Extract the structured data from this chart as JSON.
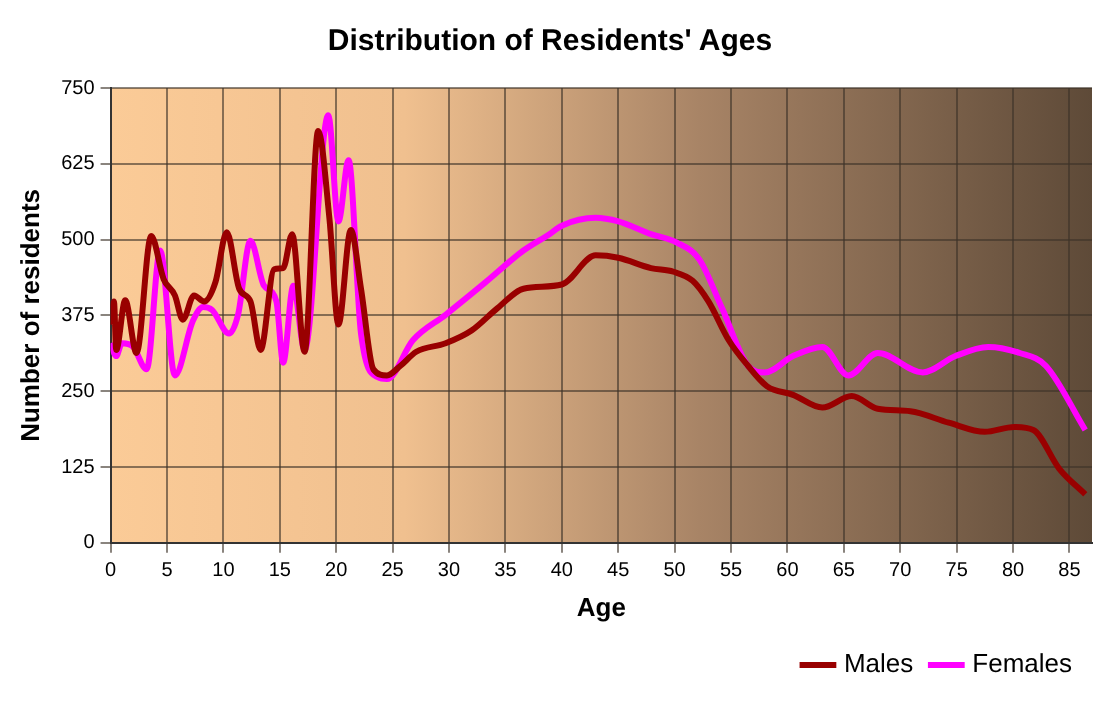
{
  "chart_data": {
    "type": "line",
    "title": "Distribution of Residents' Ages",
    "xlabel": "Age",
    "ylabel": "Number of residents",
    "xlim": [
      0,
      87
    ],
    "xticks": [
      0,
      5,
      10,
      15,
      20,
      25,
      30,
      35,
      40,
      45,
      50,
      55,
      60,
      65,
      70,
      75,
      80,
      85
    ],
    "ylim": [
      0,
      750
    ],
    "yticks": [
      0,
      125,
      250,
      375,
      500,
      625,
      750
    ],
    "grid": true,
    "legend": "bottom right",
    "marker": "none",
    "line_style": "solid",
    "series": [
      {
        "name": "Males",
        "color": "#990000",
        "x": [
          0,
          0.3,
          0.5,
          1.3,
          2.3,
          3.6,
          4.7,
          5.7,
          6.4,
          7.4,
          8.3,
          9.3,
          10.3,
          11.4,
          12.4,
          13.3,
          14.5,
          15.3,
          16.1,
          17.2,
          18.4,
          19.4,
          20.2,
          21.3,
          22.2,
          23.3,
          24.5,
          25.7,
          27.1,
          29.7,
          32,
          34.3,
          36.6,
          40,
          43,
          45,
          47.9,
          49.9,
          51.6,
          53,
          54.8,
          56.5,
          58.2,
          60.5,
          63.1,
          65.7,
          68,
          70.9,
          74.3,
          77.5,
          80.1,
          81.8,
          84.1,
          86.4
        ],
        "values": [
          360,
          398,
          318,
          400,
          313,
          506,
          435,
          408,
          368,
          408,
          398,
          430,
          512,
          419,
          398,
          318,
          451,
          453,
          509,
          315,
          679,
          535,
          360,
          516,
          419,
          286,
          276,
          292,
          315,
          329,
          350,
          387,
          419,
          426,
          474,
          470,
          453,
          447,
          432,
          398,
          334,
          292,
          258,
          244,
          223,
          242,
          221,
          217,
          198,
          183,
          191,
          186,
          122,
          80
        ]
      },
      {
        "name": "Females",
        "color": "#ff00ff",
        "x": [
          0,
          0.5,
          1,
          2,
          3.2,
          4.4,
          5.7,
          7.3,
          8.2,
          9,
          10.5,
          11.3,
          12.4,
          13.6,
          14.7,
          15.3,
          16.2,
          17.2,
          19.3,
          20.2,
          21.1,
          22.2,
          23.7,
          24.5,
          26.8,
          29.7,
          33.2,
          36.6,
          38.9,
          40,
          43,
          45,
          47.9,
          50.2,
          52.2,
          54.2,
          56.5,
          58,
          60.5,
          63.1,
          65.4,
          68,
          72,
          74.9,
          77.8,
          80.6,
          82.9,
          86.4
        ],
        "values": [
          329,
          308,
          329,
          323,
          286,
          482,
          276,
          366,
          389,
          384,
          345,
          376,
          498,
          424,
          398,
          297,
          424,
          318,
          705,
          530,
          631,
          345,
          273,
          270,
          334,
          376,
          429,
          482,
          509,
          523,
          536,
          530,
          509,
          495,
          467,
          387,
          292,
          281,
          308,
          323,
          276,
          313,
          281,
          308,
          323,
          313,
          292,
          186
        ]
      }
    ]
  }
}
